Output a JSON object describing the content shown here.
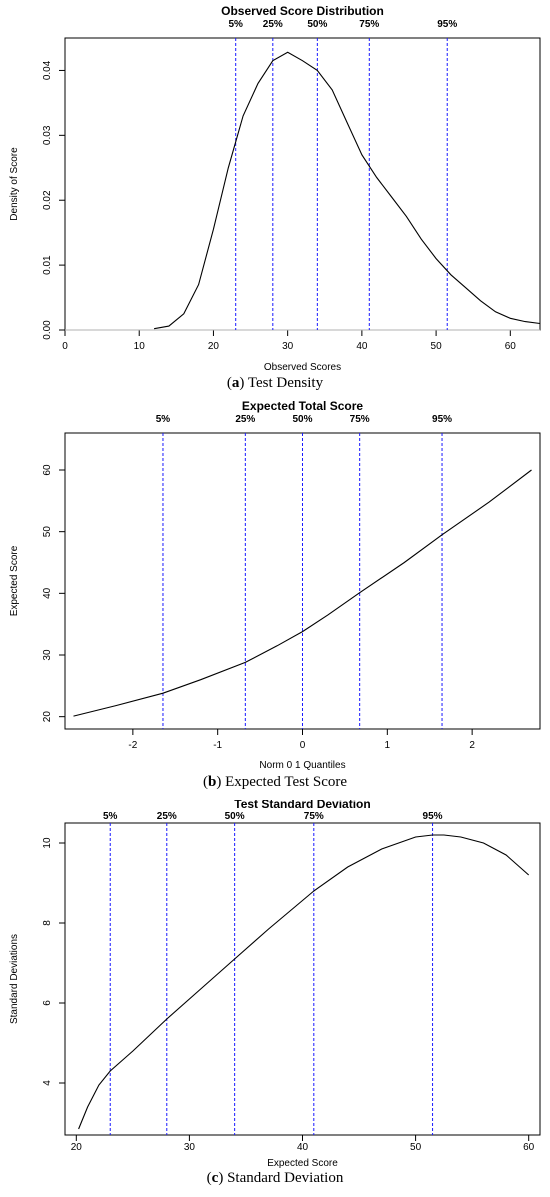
{
  "chart_data": [
    {
      "type": "line",
      "title": "Observed Score Distribution",
      "xlabel": "Observed Scores",
      "ylabel": "Density of Score",
      "xlim": [
        0,
        64
      ],
      "ylim": [
        0,
        0.045
      ],
      "xticks": [
        0,
        10,
        20,
        30,
        40,
        50,
        60
      ],
      "yticks": [
        0.0,
        0.01,
        0.02,
        0.03,
        0.04
      ],
      "ytick_labels": [
        "0.00",
        "0.01",
        "0.02",
        "0.03",
        "0.04"
      ],
      "baseline": 0,
      "percentiles": [
        {
          "label": "5%",
          "x": 23
        },
        {
          "label": "25%",
          "x": 28
        },
        {
          "label": "50%",
          "x": 34
        },
        {
          "label": "75%",
          "x": 41
        },
        {
          "label": "95%",
          "x": 51.5
        }
      ],
      "series": [
        {
          "x": [
            12,
            14,
            16,
            18,
            20,
            22,
            24,
            26,
            28,
            30,
            32,
            34,
            36,
            38,
            40,
            42,
            44,
            46,
            48,
            50,
            52,
            54,
            56,
            58,
            60,
            62,
            64
          ],
          "y": [
            0.0002,
            0.0006,
            0.0025,
            0.007,
            0.0155,
            0.025,
            0.033,
            0.038,
            0.0415,
            0.0428,
            0.0415,
            0.04,
            0.037,
            0.032,
            0.027,
            0.0235,
            0.0205,
            0.0175,
            0.014,
            0.011,
            0.0085,
            0.0065,
            0.0045,
            0.0028,
            0.0018,
            0.0013,
            0.001
          ]
        }
      ],
      "caption_letter": "a",
      "caption_text": "Test Density"
    },
    {
      "type": "line",
      "title": "Expected Total Score",
      "xlabel": "Norm 0 1 Quantiles",
      "ylabel": "Expected Score",
      "xlim": [
        -2.8,
        2.8
      ],
      "ylim": [
        18,
        66
      ],
      "xticks": [
        -2,
        -1,
        0,
        1,
        2
      ],
      "yticks": [
        20,
        30,
        40,
        50,
        60
      ],
      "percentiles": [
        {
          "label": "5%",
          "x": -1.645
        },
        {
          "label": "25%",
          "x": -0.674
        },
        {
          "label": "50%",
          "x": 0
        },
        {
          "label": "75%",
          "x": 0.674
        },
        {
          "label": "95%",
          "x": 1.645
        }
      ],
      "series": [
        {
          "x": [
            -2.7,
            -2.2,
            -1.645,
            -1.2,
            -0.674,
            -0.3,
            0,
            0.3,
            0.674,
            1.2,
            1.645,
            2.2,
            2.7
          ],
          "y": [
            20.1,
            21.8,
            23.8,
            26,
            28.8,
            31.5,
            33.8,
            36.5,
            40.1,
            45,
            49.5,
            54.8,
            60
          ]
        }
      ],
      "caption_letter": "b",
      "caption_text": "Expected Test Score"
    },
    {
      "type": "line",
      "title": "Test Standard Deviation",
      "xlabel": "Expected Score",
      "ylabel": "Standard Deviations",
      "xlim": [
        19,
        61
      ],
      "ylim": [
        2.7,
        10.5
      ],
      "xticks": [
        20,
        30,
        40,
        50,
        60
      ],
      "yticks": [
        4,
        6,
        8,
        10
      ],
      "percentiles": [
        {
          "label": "5%",
          "x": 23
        },
        {
          "label": "25%",
          "x": 28
        },
        {
          "label": "50%",
          "x": 34
        },
        {
          "label": "75%",
          "x": 41
        },
        {
          "label": "95%",
          "x": 51.5
        }
      ],
      "series": [
        {
          "x": [
            20.2,
            21,
            22,
            23,
            25,
            28,
            31,
            34,
            37,
            41,
            44,
            47,
            50,
            51.5,
            52.5,
            54,
            56,
            58,
            60
          ],
          "y": [
            2.85,
            3.4,
            3.95,
            4.3,
            4.8,
            5.6,
            6.35,
            7.1,
            7.85,
            8.8,
            9.4,
            9.85,
            10.15,
            10.2,
            10.2,
            10.15,
            10,
            9.7,
            9.2
          ]
        }
      ],
      "caption_letter": "c",
      "caption_text": "Standard Deviation"
    }
  ],
  "colors": {
    "curve": "#000000",
    "percentile_line": "#1a1aff",
    "baseline": "#b0b0b0",
    "axis": "#000000"
  }
}
